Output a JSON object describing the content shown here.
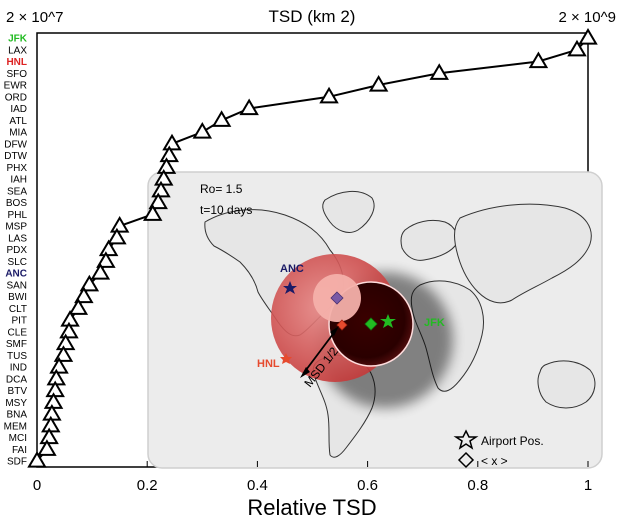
{
  "chart_data": {
    "type": "line",
    "title": "TSD (km 2)",
    "top_left_label": "2 × 10^7",
    "top_right_label": "2 × 10^9",
    "xlabel": "Relative TSD",
    "xlim": [
      0,
      1
    ],
    "xticks": [
      "0",
      "0.2",
      "0.4",
      "0.6",
      "0.8",
      "1"
    ],
    "marker": "triangle",
    "categories": [
      "JFK",
      "LAX",
      "HNL",
      "SFO",
      "EWR",
      "ORD",
      "IAD",
      "ATL",
      "MIA",
      "DFW",
      "DTW",
      "PHX",
      "IAH",
      "SEA",
      "BOS",
      "PHL",
      "MSP",
      "LAS",
      "PDX",
      "SLC",
      "ANC",
      "SAN",
      "BWI",
      "CLT",
      "PIT",
      "CLE",
      "SMF",
      "TUS",
      "IND",
      "DCA",
      "BTV",
      "MSY",
      "BNA",
      "MEM",
      "MCI",
      "FAI",
      "SDF"
    ],
    "highlight_colors": {
      "JFK": "#22bb22",
      "HNL": "#dd2222",
      "ANC": "#1a1a66"
    },
    "values": [
      1.0,
      0.98,
      0.91,
      0.73,
      0.62,
      0.53,
      0.385,
      0.335,
      0.3,
      0.245,
      0.24,
      0.235,
      0.23,
      0.225,
      0.22,
      0.21,
      0.15,
      0.145,
      0.13,
      0.125,
      0.115,
      0.095,
      0.085,
      0.075,
      0.06,
      0.058,
      0.052,
      0.048,
      0.04,
      0.035,
      0.033,
      0.03,
      0.027,
      0.025,
      0.022,
      0.018,
      0.0
    ],
    "inset": {
      "params": [
        "Ro= 1.5",
        "t=10 days"
      ],
      "airports": [
        "ANC",
        "HNL",
        "JFK"
      ],
      "msd_label": "MSD 1/2",
      "legend": [
        {
          "marker": "star",
          "label": "Airport Pos."
        },
        {
          "marker": "diamond",
          "label": "< x >"
        }
      ]
    }
  }
}
